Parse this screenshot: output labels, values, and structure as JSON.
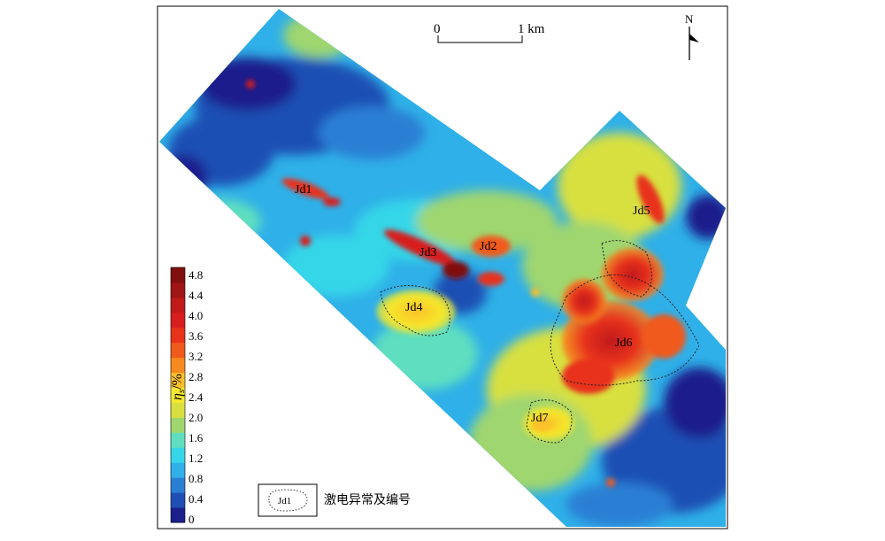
{
  "scale_bar": {
    "start_label": "0",
    "end_label": "1 km"
  },
  "north_arrow": {
    "label": "N"
  },
  "colorbar": {
    "label_main": "η",
    "label_sub": "s",
    "label_rest": "/%",
    "ticks": [
      "4.8",
      "4.4",
      "4.0",
      "3.6",
      "3.2",
      "2.8",
      "2.4",
      "2.0",
      "1.6",
      "1.2",
      "0.8",
      "0.4",
      "0"
    ],
    "colors": [
      "#1a1f8c",
      "#1f4fb4",
      "#2a7fd4",
      "#2fb0e8",
      "#35d6e8",
      "#5fdfbf",
      "#9fd670",
      "#d8e040",
      "#f6e82c",
      "#fbc02a",
      "#f78a1e",
      "#f05a1a",
      "#e8321a",
      "#d81e1e",
      "#c01a1a",
      "#a01515",
      "#80100f"
    ]
  },
  "anomalies": [
    {
      "id": "Jd1"
    },
    {
      "id": "Jd2"
    },
    {
      "id": "Jd3"
    },
    {
      "id": "Jd4"
    },
    {
      "id": "Jd5"
    },
    {
      "id": "Jd6"
    },
    {
      "id": "Jd7"
    }
  ],
  "legend": {
    "sample_label": "Jd1",
    "text": "激电异常及编号"
  }
}
